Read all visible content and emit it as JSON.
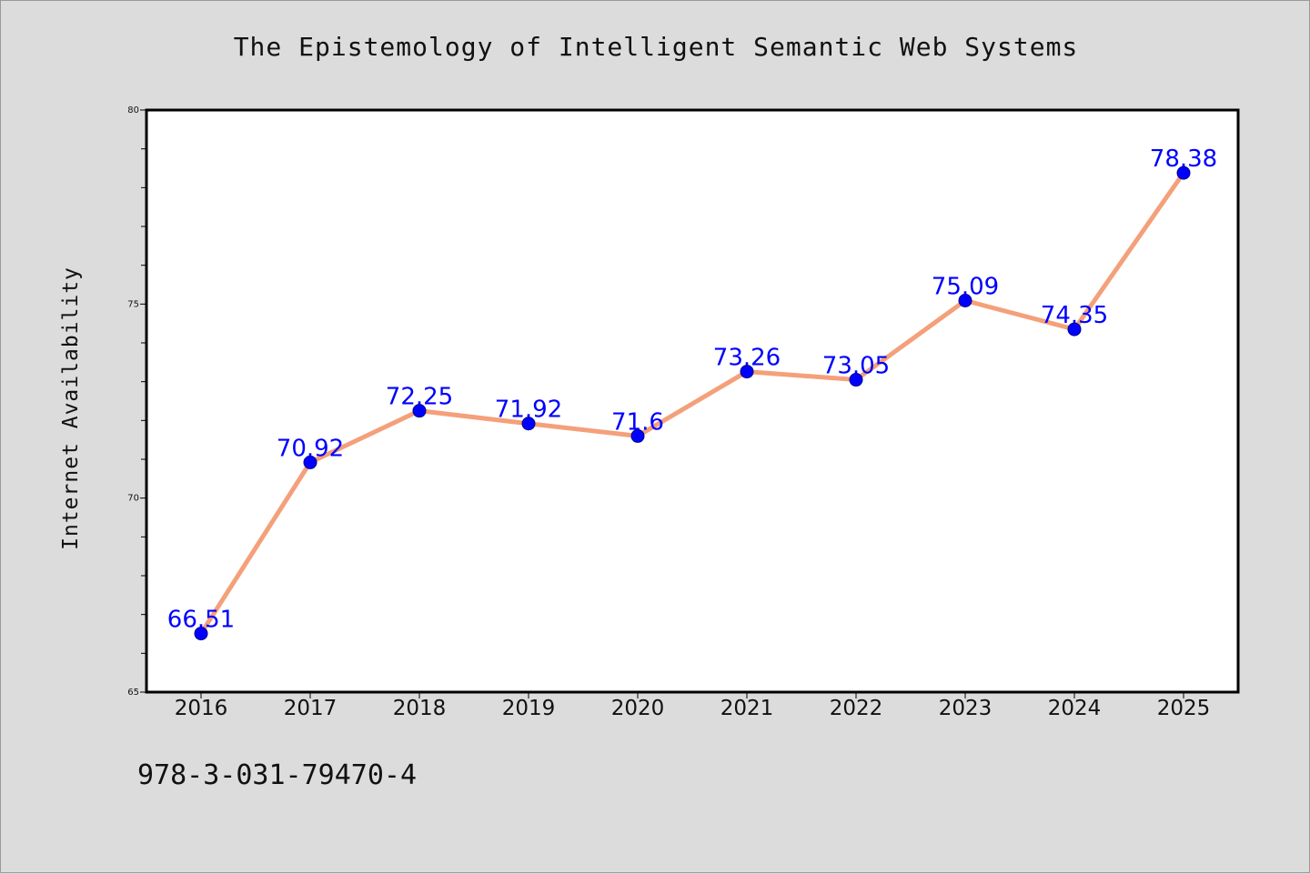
{
  "chart_data": {
    "type": "line",
    "title": "The Epistemology of Intelligent Semantic Web Systems",
    "xlabel": "",
    "ylabel": "Internet Availability",
    "x": [
      "2016",
      "2017",
      "2018",
      "2019",
      "2020",
      "2021",
      "2022",
      "2023",
      "2024",
      "2025"
    ],
    "series": [
      {
        "values": [
          66.51,
          70.92,
          72.25,
          71.92,
          71.6,
          73.26,
          73.05,
          75.09,
          74.35,
          78.38
        ],
        "labels": [
          "66.51",
          "70.92",
          "72.25",
          "71.92",
          "71.6",
          "73.26",
          "73.05",
          "75.09",
          "74.35",
          "78.38"
        ],
        "line_color": "#f4a07a",
        "marker_color": "#0000ff"
      }
    ],
    "ylim": [
      65,
      80
    ],
    "yticks": [
      "65",
      "70",
      "75",
      "80"
    ],
    "grid": false,
    "legend": "none"
  },
  "footer": {
    "isbn": "978-3-031-79470-4"
  },
  "colors": {
    "background": "#dcdcdc",
    "plot_background": "#ffffff",
    "line": "#f4a07a",
    "marker": "#0000ff",
    "data_label": "#0000ff"
  }
}
